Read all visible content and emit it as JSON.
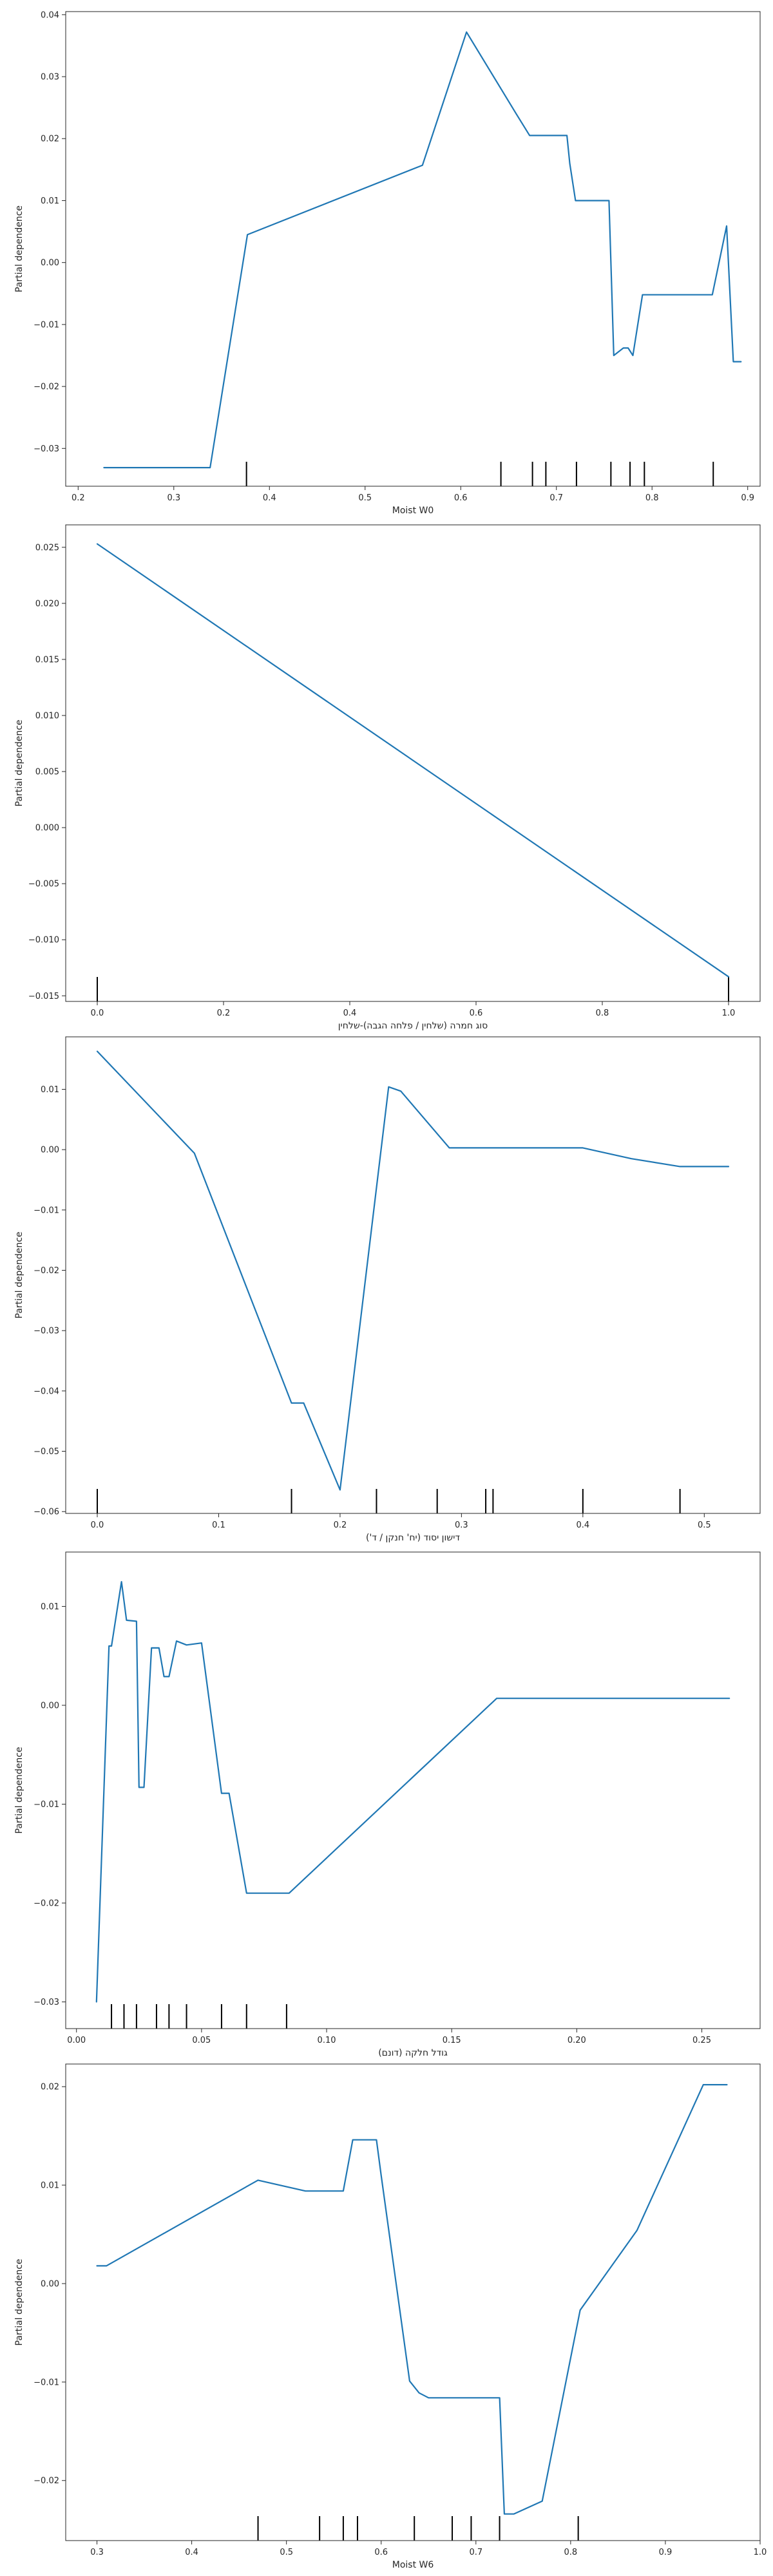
{
  "chart_data": [
    {
      "type": "line",
      "xlabel": "Moist W0",
      "ylabel": "Partial dependence",
      "xlim": [
        0.187,
        0.913
      ],
      "ylim": [
        -0.0361,
        0.0405
      ],
      "xticks": [
        0.2,
        0.3,
        0.4,
        0.5,
        0.6,
        0.7,
        0.8,
        0.9
      ],
      "xtick_labels": [
        "0.2",
        "0.3",
        "0.4",
        "0.5",
        "0.6",
        "0.7",
        "0.8",
        "0.9"
      ],
      "yticks": [
        -0.03,
        -0.02,
        -0.01,
        0.0,
        0.01,
        0.02,
        0.03,
        0.04
      ],
      "ytick_labels": [
        "−0.03",
        "−0.02",
        "−0.01",
        "0.00",
        "0.01",
        "0.02",
        "0.03",
        "0.04"
      ],
      "x": [
        0.227,
        0.338,
        0.377,
        0.56,
        0.606,
        0.658,
        0.672,
        0.711,
        0.714,
        0.72,
        0.755,
        0.76,
        0.77,
        0.775,
        0.78,
        0.79,
        0.863,
        0.878,
        0.885,
        0.893
      ],
      "y": [
        -0.0331,
        -0.0331,
        0.0045,
        0.0157,
        0.0372,
        0.024,
        0.0205,
        0.0205,
        0.016,
        0.01,
        0.01,
        -0.015,
        -0.0138,
        -0.0138,
        -0.015,
        -0.0052,
        -0.0052,
        0.0059,
        -0.016,
        -0.016
      ],
      "rug": [
        0.376,
        0.642,
        0.675,
        0.689,
        0.721,
        0.757,
        0.777,
        0.792,
        0.864
      ]
    },
    {
      "type": "line",
      "xlabel": "סוג חמרה (שלחין / פלחה הגבה)-שלחין",
      "ylabel": "Partial dependence",
      "xlim": [
        -0.05,
        1.05
      ],
      "ylim": [
        -0.0155,
        0.027
      ],
      "xticks": [
        0.0,
        0.2,
        0.4,
        0.6,
        0.8,
        1.0
      ],
      "xtick_labels": [
        "0.0",
        "0.2",
        "0.4",
        "0.6",
        "0.8",
        "1.0"
      ],
      "yticks": [
        -0.015,
        -0.01,
        -0.005,
        0.0,
        0.005,
        0.01,
        0.015,
        0.02,
        0.025
      ],
      "ytick_labels": [
        "−0.015",
        "−0.010",
        "−0.005",
        "0.000",
        "0.005",
        "0.010",
        "0.015",
        "0.020",
        "0.025"
      ],
      "x": [
        0.0,
        1.0
      ],
      "y": [
        0.0253,
        -0.0133
      ],
      "rug": [
        0.0,
        1.0
      ]
    },
    {
      "type": "line",
      "xlabel": "דישון יסוד (יח' חנקן / ד')",
      "ylabel": "Partial dependence",
      "xlim": [
        -0.026,
        0.546
      ],
      "ylim": [
        -0.0603,
        0.0187
      ],
      "xticks": [
        0.0,
        0.1,
        0.2,
        0.3,
        0.4,
        0.5
      ],
      "xtick_labels": [
        "0.0",
        "0.1",
        "0.2",
        "0.3",
        "0.4",
        "0.5"
      ],
      "yticks": [
        -0.06,
        -0.05,
        -0.04,
        -0.03,
        -0.02,
        -0.01,
        0.0,
        0.01
      ],
      "ytick_labels": [
        "−0.06",
        "−0.05",
        "−0.04",
        "−0.03",
        "−0.02",
        "−0.01",
        "0.00",
        "0.01"
      ],
      "x": [
        0.0,
        0.08,
        0.16,
        0.17,
        0.2,
        0.24,
        0.25,
        0.29,
        0.4,
        0.44,
        0.48,
        0.52
      ],
      "y": [
        0.0163,
        -0.0006,
        -0.042,
        -0.042,
        -0.0564,
        0.0104,
        0.0097,
        0.0003,
        0.0003,
        -0.0015,
        -0.0028,
        -0.0028
      ],
      "rug": [
        0.0,
        0.16,
        0.23,
        0.28,
        0.32,
        0.326,
        0.4,
        0.48
      ]
    },
    {
      "type": "line",
      "xlabel": "גודל חלקה (דונם)",
      "ylabel": "Partial dependence",
      "xlim": [
        -0.0043,
        0.2733
      ],
      "ylim": [
        -0.0327,
        0.0155
      ],
      "xticks": [
        0.0,
        0.05,
        0.1,
        0.15,
        0.2,
        0.25
      ],
      "xtick_labels": [
        "0.00",
        "0.05",
        "0.10",
        "0.15",
        "0.20",
        "0.25"
      ],
      "yticks": [
        -0.03,
        -0.02,
        -0.01,
        0.0,
        0.01
      ],
      "ytick_labels": [
        "−0.03",
        "−0.02",
        "−0.01",
        "0.00",
        "0.01"
      ],
      "x": [
        0.008,
        0.013,
        0.014,
        0.018,
        0.02,
        0.024,
        0.025,
        0.027,
        0.03,
        0.033,
        0.035,
        0.037,
        0.04,
        0.044,
        0.05,
        0.058,
        0.061,
        0.068,
        0.08,
        0.085,
        0.168,
        0.261
      ],
      "y": [
        -0.03,
        0.006,
        0.006,
        0.0125,
        0.0086,
        0.0085,
        -0.0083,
        -0.0083,
        0.0058,
        0.0058,
        0.0029,
        0.0029,
        0.0065,
        0.0061,
        0.0063,
        -0.0089,
        -0.0089,
        -0.019,
        -0.019,
        -0.019,
        0.0007,
        0.0007
      ],
      "rug": [
        0.014,
        0.019,
        0.024,
        0.032,
        0.037,
        0.044,
        0.058,
        0.068,
        0.084
      ]
    },
    {
      "type": "line",
      "xlabel": "Moist W6",
      "ylabel": "Partial dependence",
      "xlim": [
        0.267,
        1.0
      ],
      "ylim": [
        -0.0261,
        0.0223
      ],
      "xticks": [
        0.3,
        0.4,
        0.5,
        0.6,
        0.7,
        0.8,
        0.9,
        1.0
      ],
      "xtick_labels": [
        "0.3",
        "0.4",
        "0.5",
        "0.6",
        "0.7",
        "0.8",
        "0.9",
        "1.0"
      ],
      "yticks": [
        -0.02,
        -0.01,
        0.0,
        0.01,
        0.02
      ],
      "ytick_labels": [
        "−0.02",
        "−0.01",
        "0.00",
        "0.01",
        "0.02"
      ],
      "x": [
        0.3,
        0.31,
        0.47,
        0.52,
        0.56,
        0.57,
        0.595,
        0.6,
        0.63,
        0.64,
        0.65,
        0.7,
        0.725,
        0.73,
        0.74,
        0.77,
        0.81,
        0.87,
        0.94,
        0.965
      ],
      "y": [
        0.0018,
        0.0018,
        0.0105,
        0.0094,
        0.0094,
        0.0146,
        0.0146,
        0.011,
        -0.0099,
        -0.0111,
        -0.0116,
        -0.0116,
        -0.0116,
        -0.0234,
        -0.0234,
        -0.0221,
        -0.0027,
        0.0054,
        0.0202,
        0.0202
      ],
      "rug": [
        0.47,
        0.535,
        0.56,
        0.575,
        0.635,
        0.675,
        0.695,
        0.725,
        0.808
      ]
    }
  ]
}
